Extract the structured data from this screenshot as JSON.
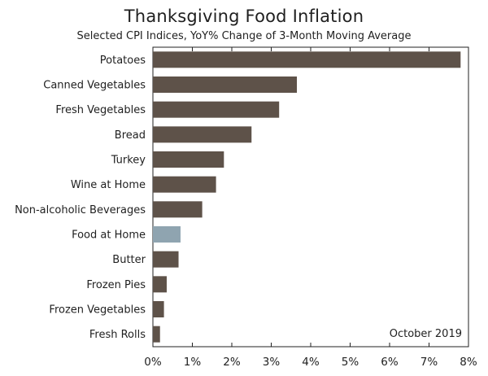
{
  "chart_data": {
    "type": "bar",
    "orientation": "horizontal",
    "title": "Thanksgiving Food Inflation",
    "subtitle": "Selected CPI Indices, YoY% Change of 3-Month Moving Average",
    "annotation": "October 2019",
    "xlabel": "",
    "ylabel": "",
    "xlim": [
      0,
      8
    ],
    "x_ticks": [
      0,
      1,
      2,
      3,
      4,
      5,
      6,
      7,
      8
    ],
    "x_tick_labels": [
      "0%",
      "1%",
      "2%",
      "3%",
      "4%",
      "5%",
      "6%",
      "7%",
      "8%"
    ],
    "grid": false,
    "categories": [
      "Potatoes",
      "Canned Vegetables",
      "Fresh Vegetables",
      "Bread",
      "Turkey",
      "Wine at Home",
      "Non-alcoholic Beverages",
      "Food at Home",
      "Butter",
      "Frozen Pies",
      "Frozen Vegetables",
      "Fresh Rolls"
    ],
    "values": [
      7.8,
      3.65,
      3.2,
      2.5,
      1.8,
      1.6,
      1.25,
      0.7,
      0.65,
      0.35,
      0.28,
      0.18
    ],
    "highlight_category": "Food at Home",
    "colors": {
      "bar": "#5e5249",
      "highlight": "#8fa4b0",
      "axis": "#222222"
    }
  }
}
